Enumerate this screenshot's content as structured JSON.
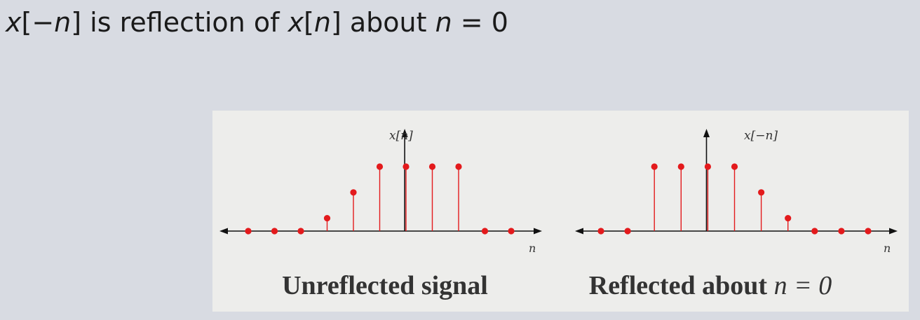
{
  "title": {
    "part1": "x",
    "part2": "[−",
    "part3": "n",
    "part4": "] is reflection of ",
    "part5": "x",
    "part6": "[",
    "part7": "n",
    "part8": "] about ",
    "part9": "n",
    "part10": " = 0"
  },
  "chart_data": [
    {
      "type": "stem",
      "ylabel": "x[n]",
      "xlabel": "n",
      "caption_bold": "Unreflected signal",
      "values": [
        0,
        0,
        0,
        0.5,
        1.5,
        2.5,
        2.5,
        2.5,
        2.5,
        0,
        0
      ],
      "ylim": [
        0,
        2.5
      ]
    },
    {
      "type": "stem",
      "ylabel": "x[−n]",
      "xlabel": "n",
      "caption_bold": "Reflected about ",
      "caption_math": "n = 0",
      "values": [
        0,
        0,
        2.5,
        2.5,
        2.5,
        2.5,
        1.5,
        0.5,
        0,
        0,
        0
      ],
      "ylim": [
        0,
        2.5
      ]
    }
  ],
  "colors": {
    "stem": "#e31a1c",
    "axis": "#111111",
    "panel": "#ededeb",
    "background": "#d8dbe2"
  }
}
